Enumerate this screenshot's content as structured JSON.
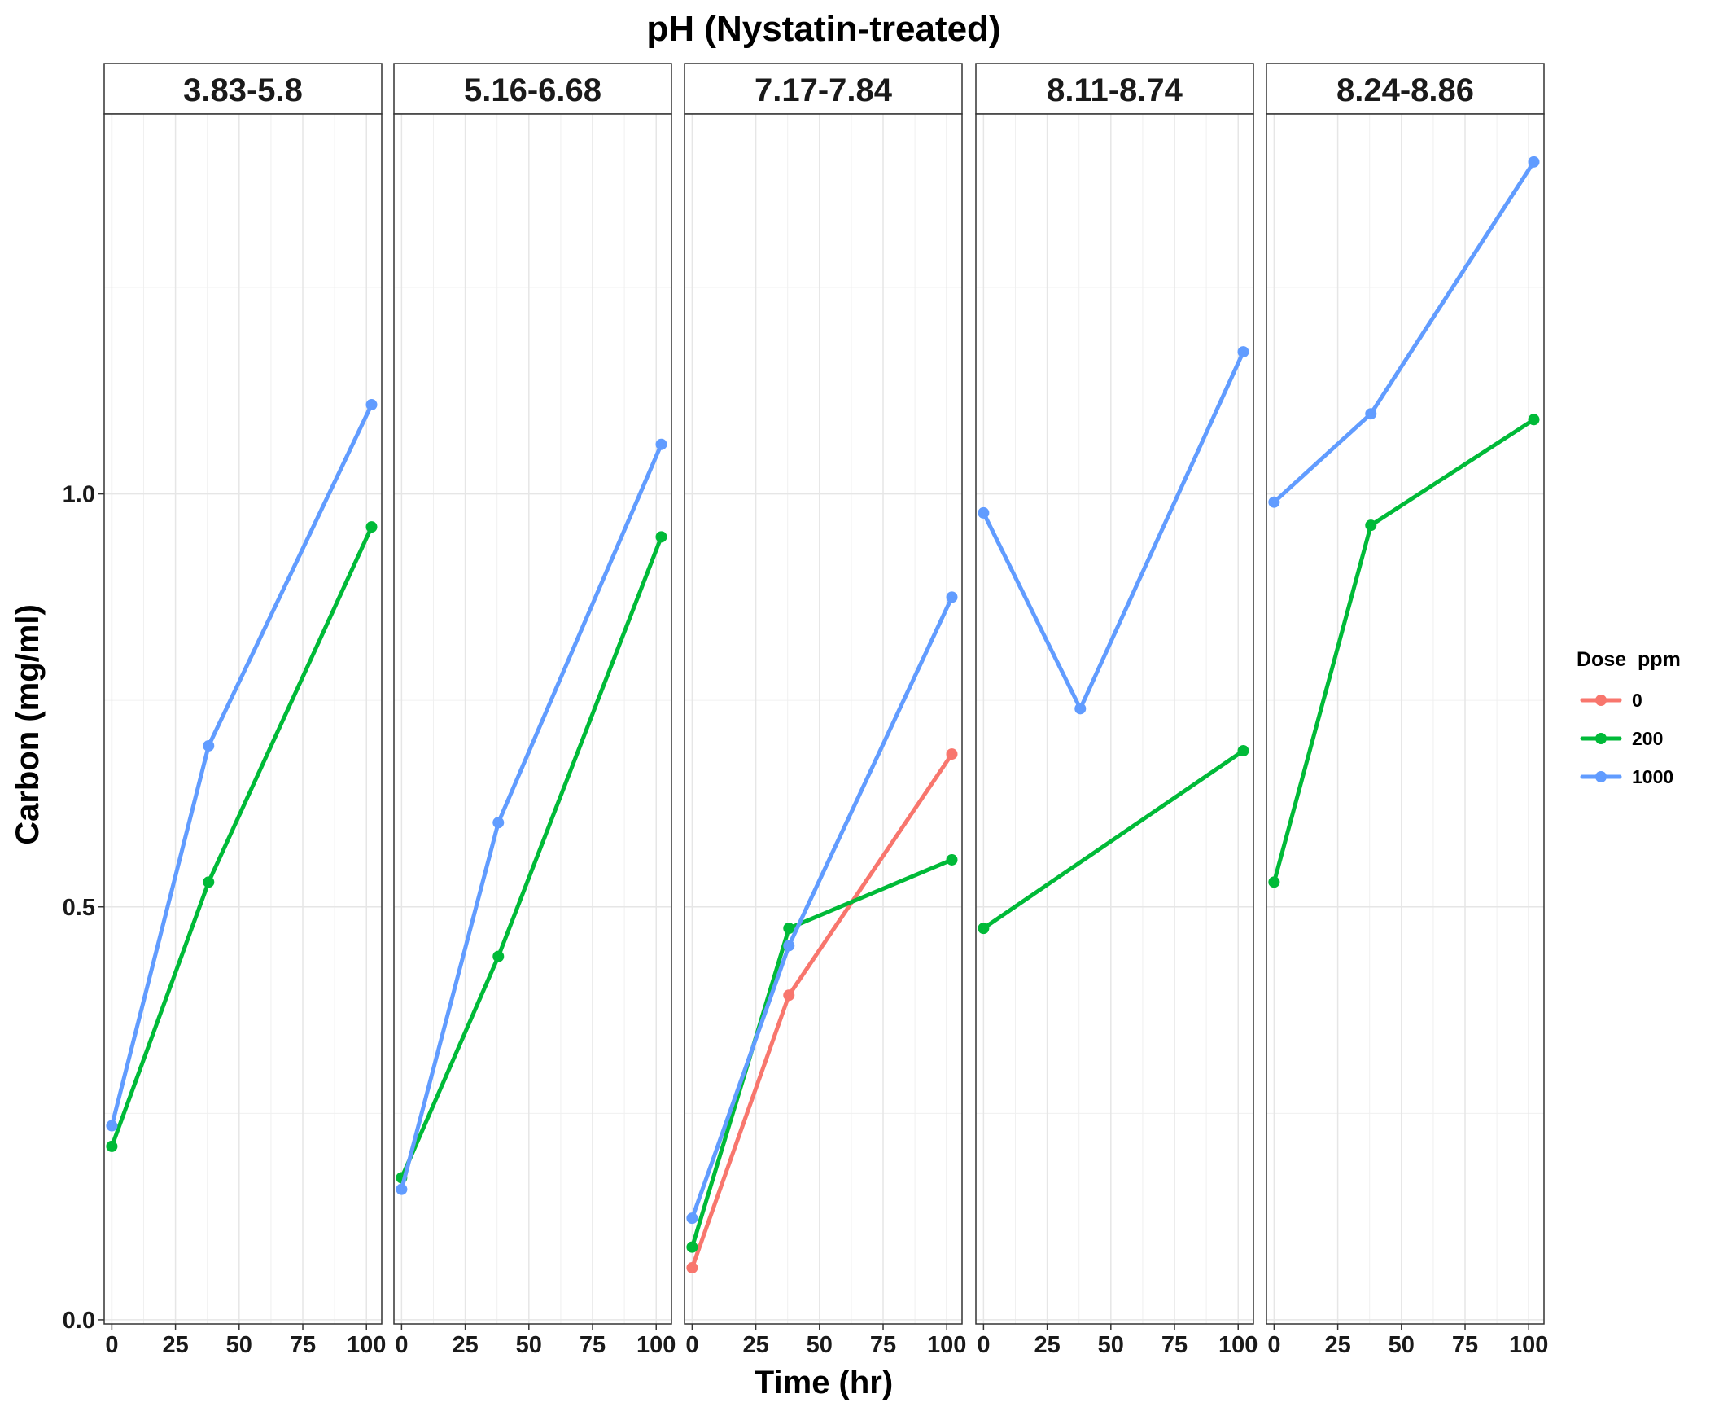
{
  "chart_data": {
    "type": "line",
    "title": "pH (Nystatin-treated)",
    "xlabel": "Time (hr)",
    "ylabel": "Carbon (mg/ml)",
    "xlim": [
      -3,
      106
    ],
    "ylim": [
      -0.005,
      1.46
    ],
    "x_ticks": [
      0,
      25,
      50,
      75,
      100
    ],
    "x_tick_labels": [
      "0",
      "25",
      "50",
      "75",
      "100"
    ],
    "y_ticks": [
      0.0,
      0.5,
      1.0
    ],
    "y_tick_labels": [
      "0.0",
      "0.5",
      "1.0"
    ],
    "grid": true,
    "legend": {
      "title": "Dose_ppm",
      "position": "right",
      "entries": [
        {
          "label": "0",
          "color": "#F8766D"
        },
        {
          "label": "200",
          "color": "#00BA38"
        },
        {
          "label": "1000",
          "color": "#619CFF"
        }
      ]
    },
    "panels": [
      {
        "label": "3.83-5.8",
        "series": [
          {
            "name": "200",
            "color": "#00BA38",
            "points": [
              [
                0,
                0.21
              ],
              [
                38,
                0.53
              ],
              [
                102,
                0.96
              ]
            ]
          },
          {
            "name": "1000",
            "color": "#619CFF",
            "points": [
              [
                0,
                0.235
              ],
              [
                38,
                0.695
              ],
              [
                102,
                1.108
              ]
            ]
          }
        ]
      },
      {
        "label": "5.16-6.68",
        "series": [
          {
            "name": "200",
            "color": "#00BA38",
            "points": [
              [
                0,
                0.172
              ],
              [
                38,
                0.44
              ],
              [
                102,
                0.948
              ]
            ]
          },
          {
            "name": "1000",
            "color": "#619CFF",
            "points": [
              [
                0,
                0.158
              ],
              [
                38,
                0.602
              ],
              [
                102,
                1.06
              ]
            ]
          }
        ]
      },
      {
        "label": "7.17-7.84",
        "series": [
          {
            "name": "0",
            "color": "#F8766D",
            "points": [
              [
                0,
                0.063
              ],
              [
                38,
                0.393
              ],
              [
                102,
                0.685
              ]
            ]
          },
          {
            "name": "200",
            "color": "#00BA38",
            "points": [
              [
                0,
                0.088
              ],
              [
                38,
                0.474
              ],
              [
                102,
                0.557
              ]
            ]
          },
          {
            "name": "1000",
            "color": "#619CFF",
            "points": [
              [
                0,
                0.123
              ],
              [
                38,
                0.453
              ],
              [
                102,
                0.875
              ]
            ]
          }
        ]
      },
      {
        "label": "8.11-8.74",
        "series": [
          {
            "name": "200",
            "color": "#00BA38",
            "points": [
              [
                0,
                0.474
              ],
              [
                102,
                0.689
              ]
            ]
          },
          {
            "name": "1000",
            "color": "#619CFF",
            "points": [
              [
                0,
                0.977
              ],
              [
                38,
                0.74
              ],
              [
                102,
                1.172
              ]
            ]
          }
        ]
      },
      {
        "label": "8.24-8.86",
        "series": [
          {
            "name": "200",
            "color": "#00BA38",
            "points": [
              [
                0,
                0.53
              ],
              [
                38,
                0.962
              ],
              [
                102,
                1.09
              ]
            ]
          },
          {
            "name": "1000",
            "color": "#619CFF",
            "points": [
              [
                0,
                0.99
              ],
              [
                38,
                1.097
              ],
              [
                102,
                1.402
              ]
            ]
          }
        ]
      }
    ]
  }
}
